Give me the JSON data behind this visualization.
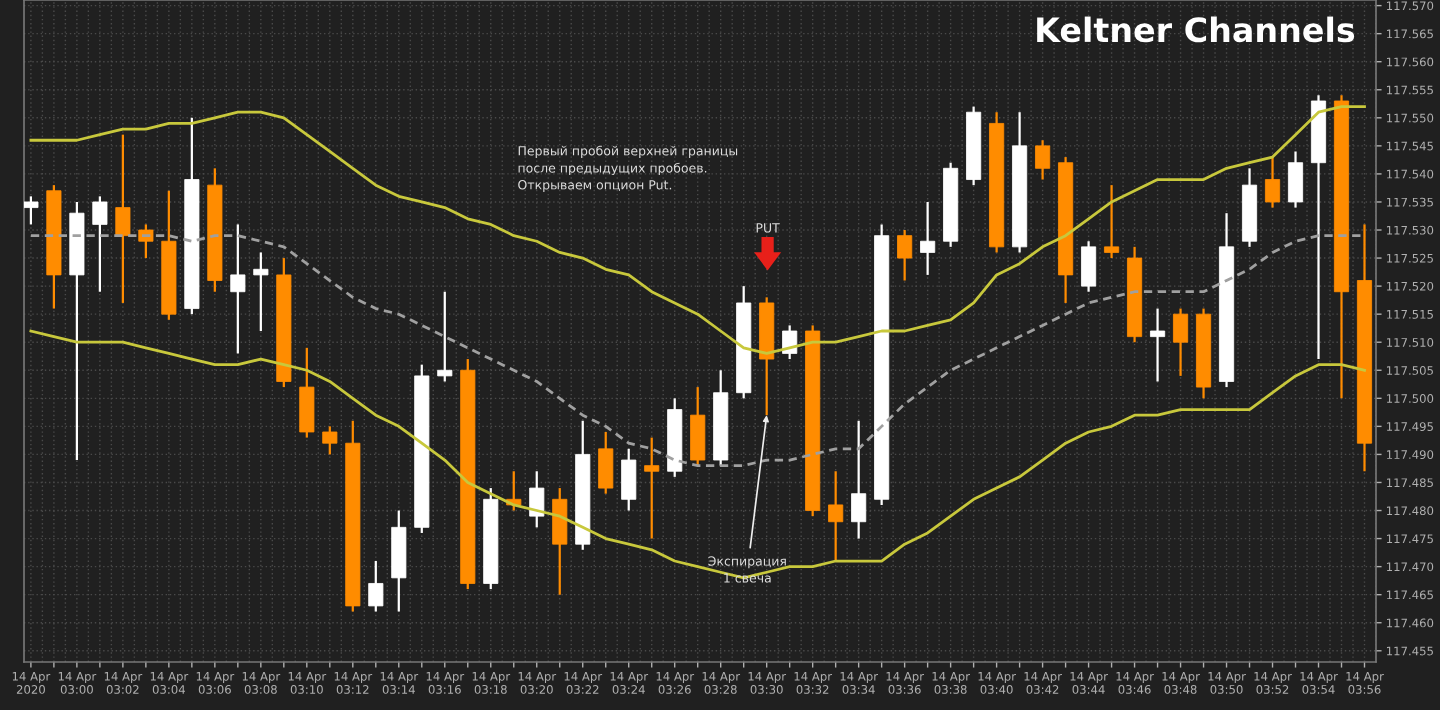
{
  "chart_data": {
    "type": "candlestick",
    "title": "Keltner Channels",
    "categories": [
      "14 Apr 2020",
      null,
      "14 Apr 03:00",
      null,
      "14 Apr 03:02",
      null,
      "14 Apr 03:04",
      null,
      "14 Apr 03:06",
      null,
      "14 Apr 03:08",
      null,
      "14 Apr 03:10",
      null,
      "14 Apr 03:12",
      null,
      "14 Apr 03:14",
      null,
      "14 Apr 03:16",
      null,
      "14 Apr 03:18",
      null,
      "14 Apr 03:20",
      null,
      "14 Apr 03:22",
      null,
      "14 Apr 03:24",
      null,
      "14 Apr 03:26",
      null,
      "14 Apr 03:28",
      null,
      "14 Apr 03:30",
      null,
      "14 Apr 03:32",
      null,
      "14 Apr 03:34",
      null,
      "14 Apr 03:36",
      null,
      "14 Apr 03:38",
      null,
      "14 Apr 03:40",
      null,
      "14 Apr 03:42",
      null,
      "14 Apr 03:44",
      null,
      "14 Apr 03:46",
      null,
      "14 Apr 03:48",
      null,
      "14 Apr 03:50",
      null,
      "14 Apr 03:52",
      null,
      "14 Apr 03:54",
      null,
      "14 Apr 03:56"
    ],
    "ohlc": [
      [
        117.534,
        117.536,
        117.531,
        117.535
      ],
      [
        117.537,
        117.538,
        117.516,
        117.522
      ],
      [
        117.522,
        117.535,
        117.489,
        117.533
      ],
      [
        117.531,
        117.536,
        117.519,
        117.535
      ],
      [
        117.534,
        117.547,
        117.517,
        117.529
      ],
      [
        117.53,
        117.531,
        117.525,
        117.528
      ],
      [
        117.528,
        117.537,
        117.514,
        117.515
      ],
      [
        117.516,
        117.55,
        117.515,
        117.539
      ],
      [
        117.538,
        117.541,
        117.519,
        117.521
      ],
      [
        117.519,
        117.531,
        117.508,
        117.522
      ],
      [
        117.522,
        117.526,
        117.512,
        117.523
      ],
      [
        117.522,
        117.525,
        117.502,
        117.503
      ],
      [
        117.502,
        117.509,
        117.493,
        117.494
      ],
      [
        117.494,
        117.495,
        117.49,
        117.492
      ],
      [
        117.492,
        117.496,
        117.462,
        117.463
      ],
      [
        117.463,
        117.471,
        117.462,
        117.467
      ],
      [
        117.468,
        117.48,
        117.462,
        117.477
      ],
      [
        117.477,
        117.506,
        117.476,
        117.504
      ],
      [
        117.504,
        117.519,
        117.503,
        117.505
      ],
      [
        117.505,
        117.507,
        117.466,
        117.467
      ],
      [
        117.467,
        117.484,
        117.466,
        117.482
      ],
      [
        117.482,
        117.487,
        117.48,
        117.481
      ],
      [
        117.479,
        117.487,
        117.477,
        117.484
      ],
      [
        117.482,
        117.484,
        117.465,
        117.474
      ],
      [
        117.474,
        117.496,
        117.473,
        117.49
      ],
      [
        117.491,
        117.494,
        117.483,
        117.484
      ],
      [
        117.482,
        117.491,
        117.48,
        117.489
      ],
      [
        117.488,
        117.493,
        117.475,
        117.487
      ],
      [
        117.487,
        117.5,
        117.486,
        117.498
      ],
      [
        117.497,
        117.502,
        117.488,
        117.489
      ],
      [
        117.489,
        117.505,
        117.488,
        117.501
      ],
      [
        117.501,
        117.52,
        117.5,
        117.517
      ],
      [
        117.517,
        117.518,
        117.497,
        117.507
      ],
      [
        117.508,
        117.513,
        117.507,
        117.512
      ],
      [
        117.512,
        117.513,
        117.479,
        117.48
      ],
      [
        117.481,
        117.487,
        117.471,
        117.478
      ],
      [
        117.478,
        117.496,
        117.475,
        117.483
      ],
      [
        117.482,
        117.531,
        117.481,
        117.529
      ],
      [
        117.529,
        117.53,
        117.521,
        117.525
      ],
      [
        117.526,
        117.535,
        117.522,
        117.528
      ],
      [
        117.528,
        117.542,
        117.527,
        117.541
      ],
      [
        117.539,
        117.552,
        117.538,
        117.551
      ],
      [
        117.549,
        117.551,
        117.526,
        117.527
      ],
      [
        117.527,
        117.551,
        117.526,
        117.545
      ],
      [
        117.545,
        117.546,
        117.539,
        117.541
      ],
      [
        117.542,
        117.543,
        117.517,
        117.522
      ],
      [
        117.52,
        117.528,
        117.519,
        117.527
      ],
      [
        117.527,
        117.538,
        117.525,
        117.526
      ],
      [
        117.525,
        117.527,
        117.51,
        117.511
      ],
      [
        117.511,
        117.516,
        117.503,
        117.512
      ],
      [
        117.515,
        117.516,
        117.504,
        117.51
      ],
      [
        117.515,
        117.516,
        117.5,
        117.502
      ],
      [
        117.503,
        117.533,
        117.502,
        117.527
      ],
      [
        117.528,
        117.541,
        117.527,
        117.538
      ],
      [
        117.539,
        117.543,
        117.534,
        117.535
      ],
      [
        117.535,
        117.544,
        117.534,
        117.542
      ],
      [
        117.542,
        117.554,
        117.507,
        117.553
      ],
      [
        117.553,
        117.554,
        117.5,
        117.519
      ],
      [
        117.521,
        117.531,
        117.487,
        117.492
      ]
    ],
    "colors": [
      "#ffffff",
      "#ff8c00",
      "#ffffff",
      "#ffffff",
      "#ff8c00",
      "#ff8c00",
      "#ff8c00",
      "#ffffff",
      "#ff8c00",
      "#ffffff",
      "#ffffff",
      "#ff8c00",
      "#ff8c00",
      "#ff8c00",
      "#ff8c00",
      "#ffffff",
      "#ffffff",
      "#ffffff",
      "#ffffff",
      "#ff8c00",
      "#ffffff",
      "#ff8c00",
      "#ffffff",
      "#ff8c00",
      "#ffffff",
      "#ff8c00",
      "#ffffff",
      "#ff8c00",
      "#ffffff",
      "#ff8c00",
      "#ffffff",
      "#ffffff",
      "#ff8c00",
      "#ffffff",
      "#ff8c00",
      "#ff8c00",
      "#ffffff",
      "#ffffff",
      "#ff8c00",
      "#ffffff",
      "#ffffff",
      "#ffffff",
      "#ff8c00",
      "#ffffff",
      "#ff8c00",
      "#ff8c00",
      "#ffffff",
      "#ff8c00",
      "#ff8c00",
      "#ffffff",
      "#ff8c00",
      "#ff8c00",
      "#ffffff",
      "#ffffff",
      "#ff8c00",
      "#ffffff",
      "#ffffff",
      "#ff8c00",
      "#ff8c00"
    ],
    "series": [
      {
        "type": "line",
        "color": "#c8c83c",
        "line_style": "solid",
        "values": [
          117.546,
          117.546,
          117.546,
          117.547,
          117.548,
          117.548,
          117.549,
          117.549,
          117.55,
          117.551,
          117.551,
          117.55,
          117.547,
          117.544,
          117.541,
          117.538,
          117.536,
          117.535,
          117.534,
          117.532,
          117.531,
          117.529,
          117.528,
          117.526,
          117.525,
          117.523,
          117.522,
          117.519,
          117.517,
          117.515,
          117.512,
          117.509,
          117.508,
          117.509,
          117.51,
          117.51,
          117.511,
          117.512,
          117.512,
          117.513,
          117.514,
          117.517,
          117.522,
          117.524,
          117.527,
          117.529,
          117.532,
          117.535,
          117.537,
          117.539,
          117.539,
          117.539,
          117.541,
          117.542,
          117.543,
          117.547,
          117.551,
          117.552,
          117.552
        ]
      },
      {
        "type": "line",
        "color": "#a0a0a0",
        "line_style": "dashed",
        "values": [
          117.529,
          117.529,
          117.529,
          117.529,
          117.529,
          117.529,
          117.529,
          117.528,
          117.529,
          117.529,
          117.528,
          117.527,
          117.524,
          117.521,
          117.518,
          117.516,
          117.515,
          117.513,
          117.511,
          117.509,
          117.507,
          117.505,
          117.503,
          117.5,
          117.497,
          117.495,
          117.492,
          117.491,
          117.489,
          117.488,
          117.488,
          117.488,
          117.489,
          117.489,
          117.49,
          117.491,
          117.491,
          117.495,
          117.499,
          117.502,
          117.505,
          117.507,
          117.509,
          117.511,
          117.513,
          117.515,
          117.517,
          117.518,
          117.519,
          117.519,
          117.519,
          117.519,
          117.521,
          117.523,
          117.526,
          117.528,
          117.529,
          117.529,
          117.529
        ]
      },
      {
        "type": "line",
        "color": "#c8c83c",
        "line_style": "solid",
        "values": [
          117.512,
          117.511,
          117.51,
          117.51,
          117.51,
          117.509,
          117.508,
          117.507,
          117.506,
          117.506,
          117.507,
          117.506,
          117.505,
          117.503,
          117.5,
          117.497,
          117.495,
          117.492,
          117.489,
          117.485,
          117.483,
          117.481,
          117.48,
          117.479,
          117.477,
          117.475,
          117.474,
          117.473,
          117.471,
          117.47,
          117.469,
          117.468,
          117.469,
          117.47,
          117.47,
          117.471,
          117.471,
          117.471,
          117.474,
          117.476,
          117.479,
          117.482,
          117.484,
          117.486,
          117.489,
          117.492,
          117.494,
          117.495,
          117.497,
          117.497,
          117.498,
          117.498,
          117.498,
          117.498,
          117.501,
          117.504,
          117.506,
          117.506,
          117.505
        ]
      }
    ],
    "ylim": [
      117.453,
      117.571
    ],
    "yticks": [
      {
        "value": 117.455,
        "label": "117.455"
      },
      {
        "value": 117.46,
        "label": "117.460"
      },
      {
        "value": 117.465,
        "label": "117.465"
      },
      {
        "value": 117.47,
        "label": "117.470"
      },
      {
        "value": 117.475,
        "label": "117.475"
      },
      {
        "value": 117.48,
        "label": "117.480"
      },
      {
        "value": 117.485,
        "label": "117.485"
      },
      {
        "value": 117.49,
        "label": "117.490"
      },
      {
        "value": 117.495,
        "label": "117.495"
      },
      {
        "value": 117.5,
        "label": "117.500"
      },
      {
        "value": 117.505,
        "label": "117.505"
      },
      {
        "value": 117.51,
        "label": "117.510"
      },
      {
        "value": 117.515,
        "label": "117.515"
      },
      {
        "value": 117.52,
        "label": "117.520"
      },
      {
        "value": 117.525,
        "label": "117.525"
      },
      {
        "value": 117.53,
        "label": "117.530"
      },
      {
        "value": 117.535,
        "label": "117.535"
      },
      {
        "value": 117.54,
        "label": "117.540"
      },
      {
        "value": 117.545,
        "label": "117.545"
      },
      {
        "value": 117.55,
        "label": "117.550"
      },
      {
        "value": 117.555,
        "label": "117.555"
      },
      {
        "value": 117.56,
        "label": "117.560"
      },
      {
        "value": 117.565,
        "label": "117.565"
      },
      {
        "value": 117.57,
        "label": "117.570"
      }
    ],
    "grid": true,
    "annotations": [
      "Первый пробой верхней границы\nпосле предыдущих пробоев.\nОткрываем опцион Put.",
      "PUT",
      {
        "text": "Экспирация\n1 свеча",
        "x": "14 Apr 03:30",
        "y": 117.497
      }
    ]
  }
}
